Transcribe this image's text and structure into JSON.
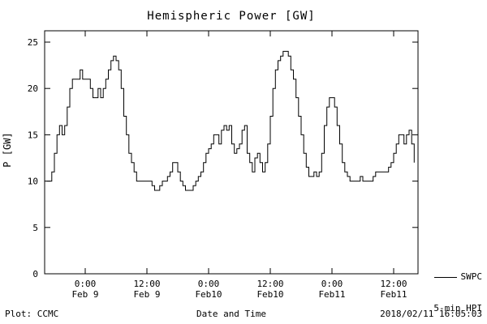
{
  "title": "Hemispheric Power [GW]",
  "ylabel": "P [GW]",
  "xlabel": "Date and Time",
  "footer": {
    "left": "Plot: CCMC",
    "right": "2018/02/11 16:05:03"
  },
  "legend": {
    "source": "SWPC",
    "series": "5-min HPI"
  },
  "chart_data": {
    "type": "line",
    "style": "steps",
    "title": "Hemispheric Power [GW]",
    "xlabel": "Date and Time",
    "ylabel": "P [GW]",
    "grid": false,
    "background": "#ffffff",
    "line_color": "#000000",
    "legend_label": "SWPC 5-min HPI",
    "legend_position": "outside-right-bottom",
    "ylim": [
      0,
      26.2
    ],
    "yticks": [
      0,
      5,
      10,
      15,
      20,
      25
    ],
    "xlim_hours_from_feb9_0000": [
      -7.9,
      64.7
    ],
    "xticks": [
      {
        "hour": 0,
        "time": "0:00",
        "date": "Feb 9"
      },
      {
        "hour": 12,
        "time": "12:00",
        "date": "Feb 9"
      },
      {
        "hour": 24,
        "time": "0:00",
        "date": "Feb10"
      },
      {
        "hour": 36,
        "time": "12:00",
        "date": "Feb10"
      },
      {
        "hour": 48,
        "time": "0:00",
        "date": "Feb11"
      },
      {
        "hour": 60,
        "time": "12:00",
        "date": "Feb11"
      }
    ],
    "x_start_hours_from_feb9_0000": -7.5,
    "x_step_hours": 0.5,
    "values": [
      10,
      10,
      11,
      13,
      15,
      16,
      15,
      16,
      18,
      20,
      21,
      21,
      21,
      22,
      21,
      21,
      21,
      20,
      19,
      19,
      20,
      19,
      20,
      21,
      22,
      23,
      23.5,
      23,
      22,
      20,
      17,
      15,
      13,
      12,
      11,
      10,
      10,
      10,
      10,
      10,
      10,
      9.5,
      9,
      9,
      9.5,
      10,
      10,
      10.5,
      11,
      12,
      12,
      11,
      10,
      9.5,
      9,
      9,
      9,
      9.5,
      10,
      10.5,
      11,
      12,
      13,
      13.5,
      14,
      15,
      15,
      14,
      15.5,
      16,
      15.5,
      16,
      14,
      13,
      13.5,
      14,
      15.5,
      16,
      13,
      12,
      11,
      12.5,
      13,
      12,
      11,
      12,
      14,
      17,
      20,
      22,
      23,
      23.5,
      24,
      24,
      23.5,
      22,
      21,
      19,
      17,
      15,
      13,
      11.5,
      10.5,
      10.5,
      11,
      10.5,
      11,
      13,
      16,
      18,
      19,
      19,
      18,
      16,
      14,
      12,
      11,
      10.5,
      10,
      10,
      10,
      10,
      10.5,
      10,
      10,
      10,
      10,
      10.5,
      11,
      11,
      11,
      11,
      11,
      11.5,
      12,
      13,
      14,
      15,
      15,
      14,
      15,
      15.5,
      14,
      12
    ]
  }
}
